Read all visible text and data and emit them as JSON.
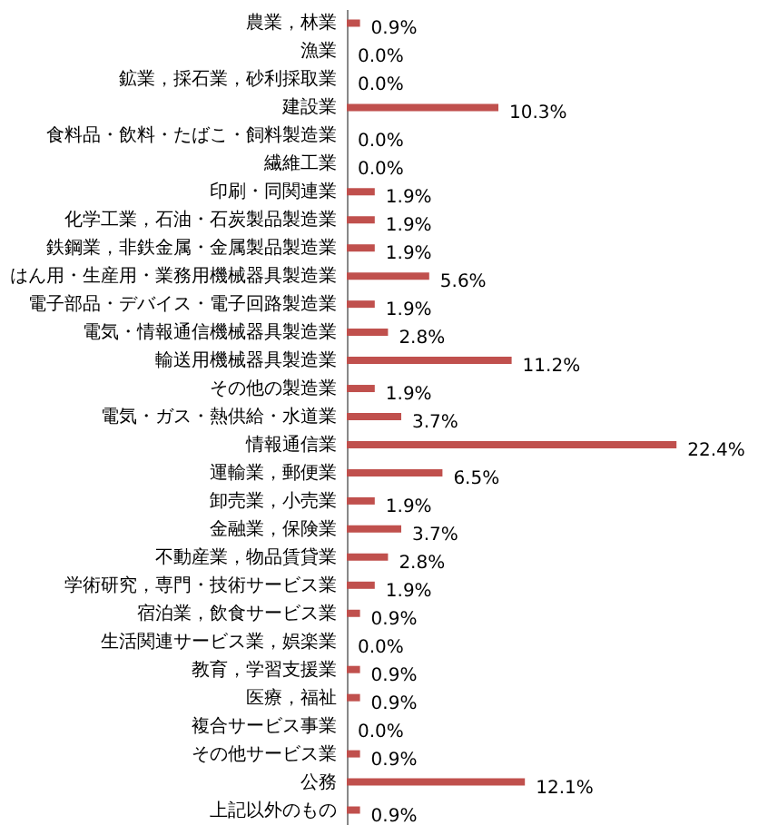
{
  "chart_data": {
    "type": "bar",
    "orientation": "horizontal",
    "color": "#c0504d",
    "categories": [
      "農業，林業",
      "漁業",
      "鉱業，採石業，砂利採取業",
      "建設業",
      "食料品・飲料・たばこ・飼料製造業",
      "繊維工業",
      "印刷・同関連業",
      "化学工業，石油・石炭製品製造業",
      "鉄鋼業，非鉄金属・金属製品製造業",
      "はん用・生産用・業務用機械器具製造業",
      "電子部品・デバイス・電子回路製造業",
      "電気・情報通信機械器具製造業",
      "輸送用機械器具製造業",
      "その他の製造業",
      "電気・ガス・熱供給・水道業",
      "情報通信業",
      "運輸業，郵便業",
      "卸売業，小売業",
      "金融業，保険業",
      "不動産業，物品賃貸業",
      "学術研究，専門・技術サービス業",
      "宿泊業，飲食サービス業",
      "生活関連サービス業，娯楽業",
      "教育，学習支援業",
      "医療，福祉",
      "複合サービス事業",
      "その他サービス業",
      "公務",
      "上記以外のもの"
    ],
    "values": [
      0.9,
      0.0,
      0.0,
      10.3,
      0.0,
      0.0,
      1.9,
      1.9,
      1.9,
      5.6,
      1.9,
      2.8,
      11.2,
      1.9,
      3.7,
      22.4,
      6.5,
      1.9,
      3.7,
      2.8,
      1.9,
      0.9,
      0.0,
      0.9,
      0.9,
      0.0,
      0.9,
      12.1,
      0.9
    ],
    "value_labels": [
      "0.9%",
      "0.0%",
      "0.0%",
      "10.3%",
      "0.0%",
      "0.0%",
      "1.9%",
      "1.9%",
      "1.9%",
      "5.6%",
      "1.9%",
      "2.8%",
      "11.2%",
      "1.9%",
      "3.7%",
      "22.4%",
      "6.5%",
      "1.9%",
      "3.7%",
      "2.8%",
      "1.9%",
      "0.9%",
      "0.0%",
      "0.9%",
      "0.9%",
      "0.0%",
      "0.9%",
      "12.1%",
      "0.9%"
    ],
    "grid": false
  }
}
